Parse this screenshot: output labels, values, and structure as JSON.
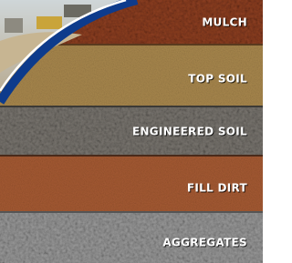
{
  "bands": [
    {
      "label": "MULCH"
    },
    {
      "label": "TOP SOIL"
    },
    {
      "label": "ENGINEERED SOIL"
    },
    {
      "label": "FILL DIRT"
    },
    {
      "label": "AGGREGATES"
    }
  ]
}
